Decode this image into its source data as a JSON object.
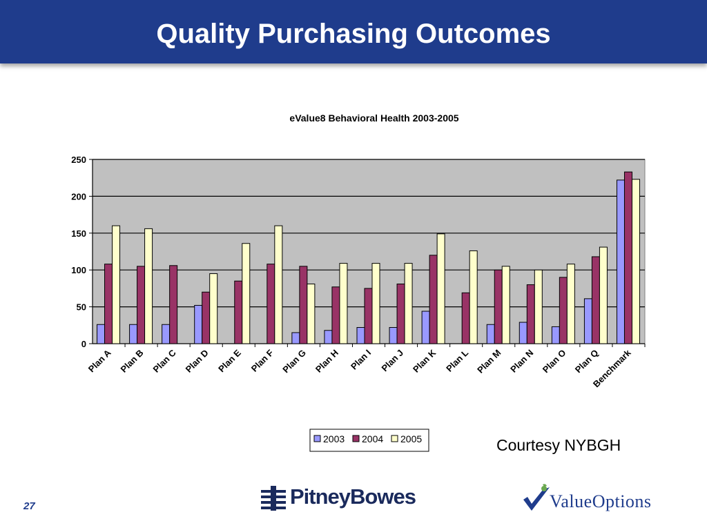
{
  "slide": {
    "title": "Quality Purchasing Outcomes",
    "courtesy": "Courtesy NYBGH",
    "page_number": "27",
    "logos": {
      "pitney_bowes": "PitneyBowes",
      "value_options": "ValueOptions"
    }
  },
  "chart_data": {
    "type": "bar",
    "title": "eValue8 Behavioral Health 2003-2005",
    "categories": [
      "Plan A",
      "Plan B",
      "Plan C",
      "Plan D",
      "Plan E",
      "Plan F",
      "Plan G",
      "Plan H",
      "Plan I",
      "Plan J",
      "Plan K",
      "Plan L",
      "Plan M",
      "Plan N",
      "Plan O",
      "Plan Q",
      "Benchmark"
    ],
    "series": [
      {
        "name": "2003",
        "color": "#9999ff",
        "values": [
          26,
          26,
          26,
          52,
          0,
          0,
          15,
          18,
          22,
          22,
          44,
          0,
          26,
          29,
          23,
          61,
          222
        ]
      },
      {
        "name": "2004",
        "color": "#993366",
        "values": [
          108,
          105,
          106,
          70,
          85,
          108,
          105,
          77,
          75,
          81,
          120,
          69,
          100,
          80,
          90,
          118,
          233
        ]
      },
      {
        "name": "2005",
        "color": "#ffffcc",
        "values": [
          160,
          156,
          0,
          95,
          136,
          160,
          81,
          109,
          109,
          109,
          149,
          126,
          105,
          100,
          108,
          131,
          223
        ]
      }
    ],
    "ylim": [
      0,
      250
    ],
    "yticks": [
      0,
      50,
      100,
      150,
      200,
      250
    ],
    "grid": true,
    "plot_background": "#c0c0c0",
    "legend_position": "bottom"
  }
}
